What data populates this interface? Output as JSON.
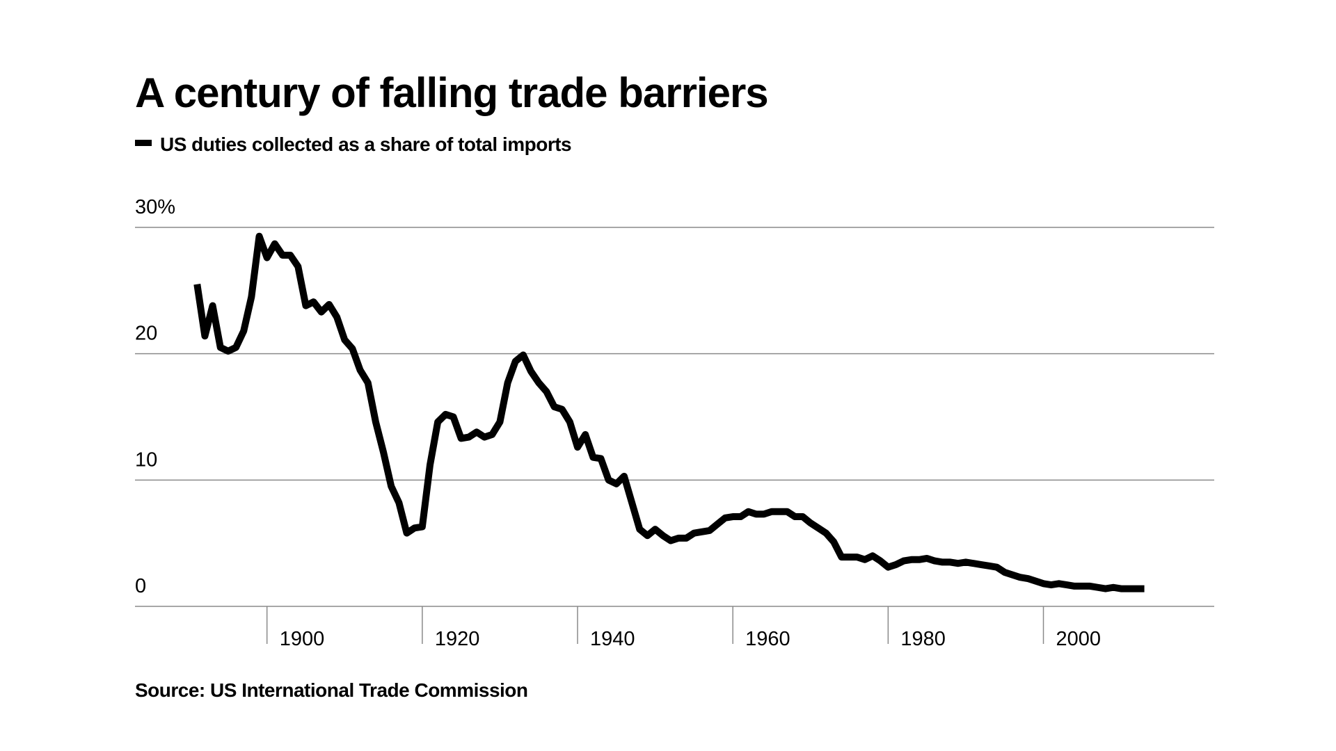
{
  "chart_data": {
    "type": "line",
    "title": "A century of falling trade barriers",
    "source": "Source: US International Trade Commission",
    "x": [
      1891,
      1892,
      1893,
      1894,
      1895,
      1896,
      1897,
      1898,
      1899,
      1900,
      1901,
      1902,
      1903,
      1904,
      1905,
      1906,
      1907,
      1908,
      1909,
      1910,
      1911,
      1912,
      1913,
      1914,
      1915,
      1916,
      1917,
      1918,
      1919,
      1920,
      1921,
      1922,
      1923,
      1924,
      1925,
      1926,
      1927,
      1928,
      1929,
      1930,
      1931,
      1932,
      1933,
      1934,
      1935,
      1936,
      1937,
      1938,
      1939,
      1940,
      1941,
      1942,
      1943,
      1944,
      1945,
      1946,
      1947,
      1948,
      1949,
      1950,
      1951,
      1952,
      1953,
      1954,
      1955,
      1956,
      1957,
      1958,
      1959,
      1960,
      1961,
      1962,
      1963,
      1964,
      1965,
      1966,
      1967,
      1968,
      1969,
      1970,
      1971,
      1972,
      1973,
      1974,
      1975,
      1976,
      1977,
      1978,
      1979,
      1980,
      1981,
      1982,
      1983,
      1984,
      1985,
      1986,
      1987,
      1988,
      1989,
      1990,
      1991,
      1992,
      1993,
      1994,
      1995,
      1996,
      1997,
      1998,
      1999,
      2000,
      2001,
      2002,
      2003,
      2004,
      2005,
      2006,
      2007,
      2008,
      2009,
      2010,
      2011,
      2012,
      2013
    ],
    "series": [
      {
        "name": "US duties collected as a share of total imports",
        "color": "#000000",
        "values": [
          25.5,
          21.4,
          23.8,
          20.5,
          20.2,
          20.5,
          21.8,
          24.5,
          29.3,
          27.6,
          28.7,
          27.8,
          27.8,
          26.9,
          23.8,
          24.1,
          23.3,
          23.9,
          22.9,
          21.1,
          20.4,
          18.7,
          17.7,
          14.6,
          12.2,
          9.5,
          8.2,
          5.8,
          6.2,
          6.3,
          11.2,
          14.6,
          15.2,
          15.0,
          13.3,
          13.4,
          13.8,
          13.4,
          13.6,
          14.6,
          17.7,
          19.4,
          19.9,
          18.6,
          17.7,
          17.0,
          15.8,
          15.6,
          14.6,
          12.6,
          13.6,
          11.8,
          11.7,
          10.0,
          9.7,
          10.3,
          8.2,
          6.1,
          5.6,
          6.1,
          5.6,
          5.2,
          5.4,
          5.4,
          5.8,
          5.9,
          6.0,
          6.5,
          7.0,
          7.1,
          7.1,
          7.5,
          7.3,
          7.3,
          7.5,
          7.5,
          7.5,
          7.1,
          7.1,
          6.6,
          6.2,
          5.8,
          5.1,
          3.9,
          3.9,
          3.9,
          3.7,
          4.0,
          3.6,
          3.1,
          3.3,
          3.6,
          3.7,
          3.7,
          3.8,
          3.6,
          3.5,
          3.5,
          3.4,
          3.5,
          3.4,
          3.3,
          3.2,
          3.1,
          2.7,
          2.5,
          2.3,
          2.2,
          2.0,
          1.8,
          1.7,
          1.8,
          1.7,
          1.6,
          1.6,
          1.6,
          1.5,
          1.4,
          1.5,
          1.4,
          1.4,
          1.4,
          1.4
        ]
      }
    ],
    "xlim": [
      1883,
      2022
    ],
    "xticks": [
      1900,
      1920,
      1940,
      1960,
      1980,
      2000
    ],
    "ylim": [
      0,
      30
    ],
    "yticks": [
      0,
      10,
      20,
      {
        "value": 30,
        "label": "30%"
      }
    ],
    "grid": true
  }
}
